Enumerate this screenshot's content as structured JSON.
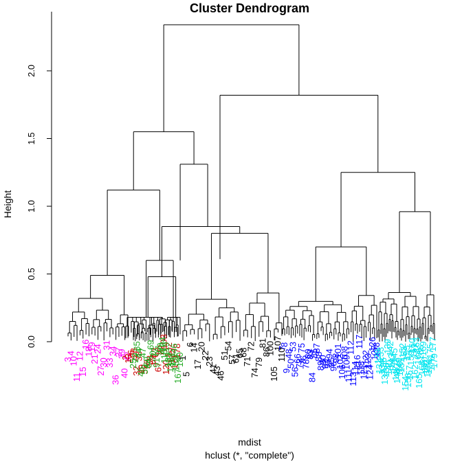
{
  "chart_data": {
    "type": "dendrogram",
    "title": "Cluster Dendrogram",
    "ylabel": "Height",
    "xlabel": "mdist",
    "subtitle": "hclust (*, \"complete\")",
    "ylim": [
      0,
      2.4
    ],
    "yticks": [
      "0.0",
      "0.5",
      "1.0",
      "1.5",
      "2.0"
    ],
    "colors": {
      "axis": "#000000",
      "branch": "#000000",
      "magenta": "#ff00ff",
      "darkred": "#cc0000",
      "green": "#22aa22",
      "black": "#000000",
      "blue": "#0000ff",
      "cyan": "#00e5ee"
    },
    "groups": [
      {
        "name": "magenta",
        "color": "#ff00ff",
        "labels": [
          "3",
          "4",
          "10",
          "11",
          "12",
          "15",
          "16",
          "18",
          "19",
          "21",
          "24",
          "27",
          "30",
          "31",
          "33",
          "34",
          "36",
          "37",
          "39",
          "40",
          "42"
        ],
        "top_merges": [
          {
            "left": 0.35,
            "right": 0.49,
            "height": 0.49
          },
          {
            "left": 0.38,
            "right": 0.42,
            "height": 0.41
          },
          {
            "left": 0.3,
            "right": 0.33,
            "height": 0.33
          }
        ]
      },
      {
        "name": "darkred",
        "color": "#cc0000",
        "labels": [
          "2",
          "13",
          "26",
          "28",
          "32",
          "38",
          "49",
          "52",
          "55",
          "58",
          "62",
          "63",
          "67",
          "82",
          "103",
          "120",
          "132",
          "135",
          "171",
          "178"
        ],
        "top_merges": [
          {
            "left": 0.42,
            "right": 0.6,
            "height": 0.6
          },
          {
            "left": 0.2,
            "right": 0.32,
            "height": 0.33
          },
          {
            "left": 0.1,
            "right": 0.18,
            "height": 0.18
          }
        ]
      },
      {
        "name": "green",
        "color": "#22aa22",
        "labels": [
          "25",
          "29",
          "35",
          "44",
          "45",
          "47",
          "59",
          "60",
          "64",
          "69",
          "70",
          "77",
          "91",
          "97",
          "99",
          "104",
          "115",
          "119",
          "125",
          "130",
          "141",
          "146",
          "158",
          "167",
          "180"
        ],
        "top_merges": [
          {
            "left": 0.2,
            "right": 0.48,
            "height": 0.48
          },
          {
            "left": 0.12,
            "right": 0.18,
            "height": 0.18
          }
        ]
      },
      {
        "name": "black",
        "color": "#000000",
        "labels": [
          "1",
          "5",
          "6",
          "14",
          "17",
          "20",
          "22",
          "23",
          "41",
          "43",
          "46",
          "51",
          "54",
          "57",
          "61",
          "65",
          "68",
          "71",
          "72",
          "74",
          "79",
          "81",
          "86",
          "100",
          "105",
          "107",
          "110"
        ],
        "top_merges": [
          {
            "left": 0.6,
            "right": 0.8,
            "height": 0.8
          },
          {
            "left": 0.2,
            "right": 0.36,
            "height": 0.4
          }
        ]
      },
      {
        "name": "blue",
        "color": "#0000ff",
        "labels": [
          "7",
          "8",
          "9",
          "48",
          "50",
          "53",
          "56",
          "66",
          "73",
          "75",
          "76",
          "78",
          "80",
          "83",
          "84",
          "85",
          "87",
          "88",
          "89",
          "90",
          "92",
          "93",
          "94",
          "95",
          "96",
          "98",
          "101",
          "102",
          "106",
          "108",
          "109",
          "111",
          "112",
          "113",
          "114",
          "116",
          "117",
          "118",
          "121",
          "122",
          "123",
          "124",
          "126",
          "127",
          "128"
        ],
        "top_merges": [
          {
            "left": 0.45,
            "right": 0.48,
            "height": 0.7
          },
          {
            "left": 0.42,
            "right": 0.44,
            "height": 0.45
          },
          {
            "left": 0.38,
            "right": 0.4,
            "height": 0.4
          }
        ]
      },
      {
        "name": "cyan",
        "color": "#00e5ee",
        "labels": [
          "129",
          "131",
          "133",
          "134",
          "136",
          "137",
          "138",
          "139",
          "140",
          "142",
          "143",
          "144",
          "145",
          "147",
          "148",
          "149",
          "150",
          "151",
          "152",
          "153",
          "154",
          "155",
          "156",
          "157",
          "159",
          "160",
          "161",
          "162",
          "163",
          "164",
          "165",
          "166",
          "168",
          "169",
          "170",
          "172",
          "173",
          "174",
          "175",
          "176",
          "177",
          "179"
        ],
        "top_merges": [
          {
            "left": 0.63,
            "right": 0.6,
            "height": 0.96
          },
          {
            "left": 0.5,
            "right": 0.45,
            "height": 0.72
          },
          {
            "left": 0.45,
            "right": 0.35,
            "height": 0.61
          }
        ]
      }
    ],
    "upper_merges": [
      {
        "children": [
          "magenta",
          "darkred"
        ],
        "height": 1.12
      },
      {
        "children": [
          "green",
          "black"
        ],
        "height": 0.85
      },
      {
        "children": [
          "green+black",
          "darkred-side"
        ],
        "height": 1.31
      },
      {
        "children": [
          "magenta",
          "green+black"
        ],
        "height": 1.55
      },
      {
        "children": [
          "blue",
          "cyan"
        ],
        "height": 1.25
      },
      {
        "children": [
          "darkred",
          "blue+cyan"
        ],
        "height": 1.82
      },
      {
        "children": [
          "left",
          "right"
        ],
        "height": 2.34
      }
    ]
  }
}
